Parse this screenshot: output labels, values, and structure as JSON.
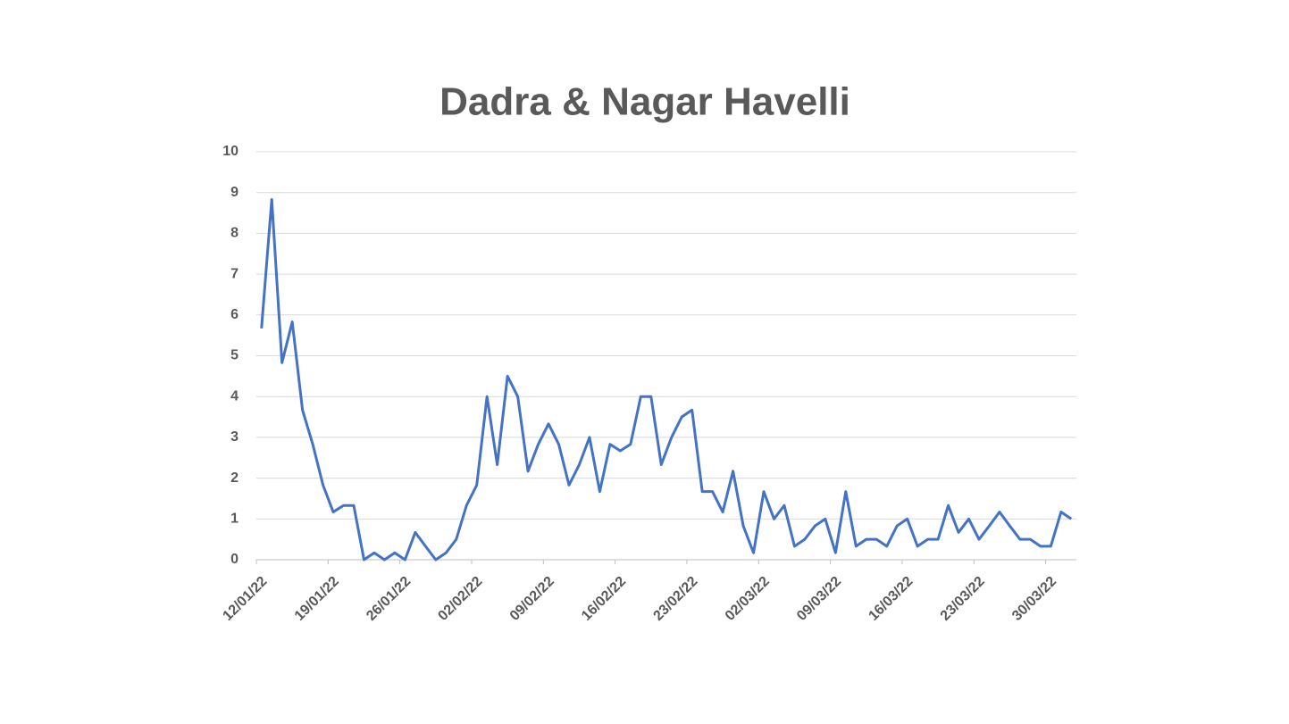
{
  "chart_data": {
    "type": "line",
    "title": "Dadra & Nagar Havelli",
    "categories": [
      "12/01/22",
      null,
      null,
      null,
      null,
      null,
      null,
      "19/01/22",
      null,
      null,
      null,
      null,
      null,
      null,
      "26/01/22",
      null,
      null,
      null,
      null,
      null,
      null,
      "02/02/22",
      null,
      null,
      null,
      null,
      null,
      null,
      "09/02/22",
      null,
      null,
      null,
      null,
      null,
      null,
      "16/02/22",
      null,
      null,
      null,
      null,
      null,
      null,
      "23/02/22",
      null,
      null,
      null,
      null,
      null,
      null,
      "02/03/22",
      null,
      null,
      null,
      null,
      null,
      null,
      "09/03/22",
      null,
      null,
      null,
      null,
      null,
      null,
      "16/03/22",
      null,
      null,
      null,
      null,
      null,
      null,
      "23/03/22",
      null,
      null,
      null,
      null,
      null,
      null,
      "30/03/22",
      null,
      null
    ],
    "values": [
      5.67,
      8.83,
      4.83,
      5.83,
      3.67,
      2.83,
      1.83,
      1.17,
      1.33,
      1.33,
      0,
      0.17,
      0,
      0.17,
      0,
      0.67,
      0.33,
      0,
      0.17,
      0.5,
      1.33,
      1.83,
      4,
      2.33,
      4.5,
      4,
      2.17,
      2.83,
      3.33,
      2.83,
      1.83,
      2.33,
      3,
      1.67,
      2.83,
      2.67,
      2.83,
      4,
      4,
      2.33,
      3,
      3.5,
      3.67,
      1.67,
      1.67,
      1.17,
      2.17,
      0.83,
      0.17,
      1.67,
      1,
      1.33,
      0.33,
      0.5,
      0.83,
      1,
      0.17,
      1.67,
      0.33,
      0.5,
      0.5,
      0.33,
      0.83,
      1,
      0.33,
      0.5,
      0.5,
      1.33,
      0.67,
      1,
      0.5,
      0.83,
      1.17,
      0.83,
      0.5,
      0.5,
      0.33,
      0.33,
      1.17,
      1
    ],
    "color": "#4472c4",
    "ylim": [
      0,
      10
    ],
    "yticks": [
      0,
      1,
      2,
      3,
      4,
      5,
      6,
      7,
      8,
      9,
      10
    ],
    "grid": true
  }
}
